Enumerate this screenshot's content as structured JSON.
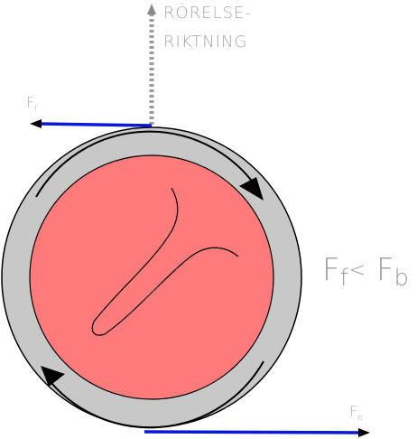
{
  "labels": {
    "motion_line1": "RÖRELSE-",
    "motion_line2": "RIKTNING",
    "friction_force_main": "F",
    "friction_force_sub": "f",
    "brake_force_main": "F",
    "brake_force_sub": "b",
    "relation_left_main": "F",
    "relation_left_sub": "f",
    "relation_operator": "<",
    "relation_right_main": "F",
    "relation_right_sub": "b"
  },
  "colors": {
    "tyre": "#c8c8c8",
    "wheel_fill": "#ff7b7b",
    "force_arrow": "#0a18d8",
    "motion_arrow": "#9a9a9a",
    "outline": "#000000"
  }
}
